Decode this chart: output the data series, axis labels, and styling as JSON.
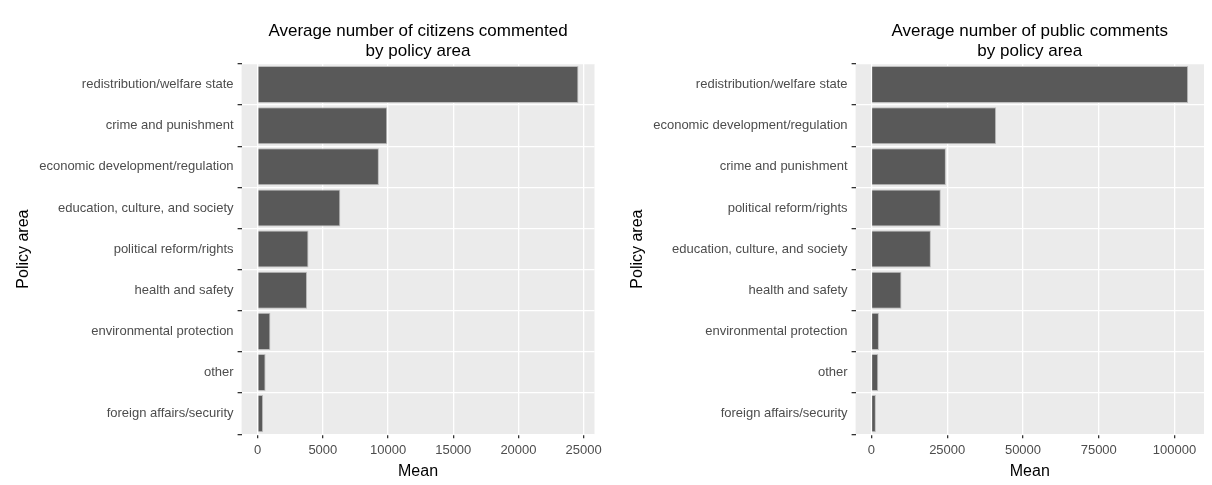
{
  "chart_data": [
    {
      "type": "bar",
      "orientation": "horizontal",
      "title": "Average number of citizens commented\nby policy area",
      "xlabel": "Mean",
      "ylabel": "Policy area",
      "categories": [
        "redistribution/welfare state",
        "crime and punishment",
        "economic development/regulation",
        "education, culture, and society",
        "political reform/rights",
        "health and safety",
        "environmental protection",
        "other",
        "foreign affairs/security"
      ],
      "values": [
        24600,
        9940,
        9300,
        6340,
        3900,
        3790,
        980,
        610,
        420
      ],
      "color": "#595959",
      "xlim": [
        -1230,
        25830
      ],
      "xticks": [
        0,
        5000,
        10000,
        15000,
        20000,
        25000
      ],
      "grid": true,
      "legend": false
    },
    {
      "type": "bar",
      "orientation": "horizontal",
      "title": "Average number of public comments\nby policy area",
      "xlabel": "Mean",
      "ylabel": "Policy area",
      "categories": [
        "redistribution/welfare state",
        "economic development/regulation",
        "crime and punishment",
        "political reform/rights",
        "education, culture, and society",
        "health and safety",
        "environmental protection",
        "other",
        "foreign affairs/security"
      ],
      "values": [
        104500,
        41150,
        24580,
        22890,
        19620,
        9920,
        2480,
        2250,
        1470
      ],
      "color": "#595959",
      "xlim": [
        -5225,
        109725
      ],
      "xticks": [
        0,
        25000,
        50000,
        75000,
        100000
      ],
      "grid": true,
      "legend": false
    }
  ]
}
